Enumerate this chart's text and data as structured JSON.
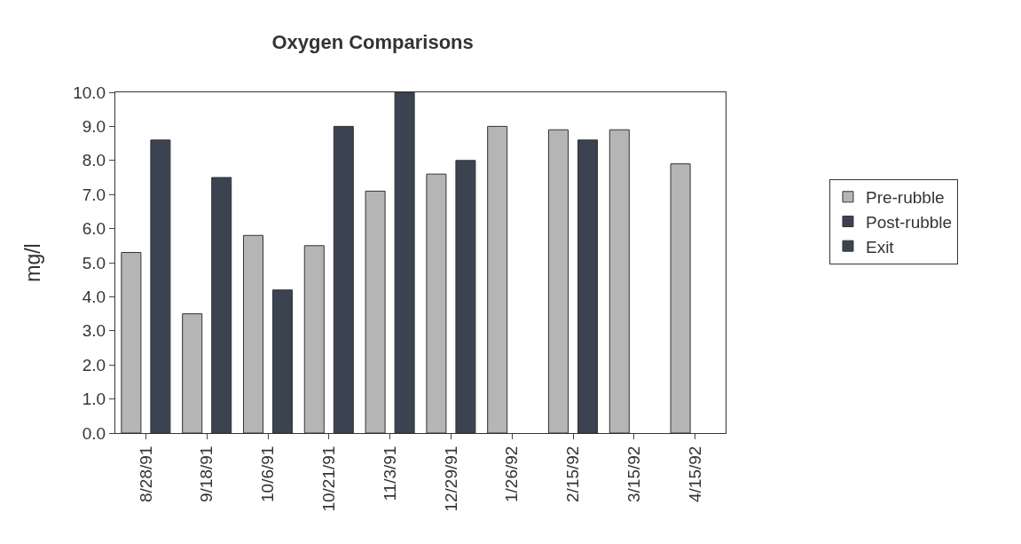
{
  "chart_data": {
    "type": "bar",
    "title": "Oxygen Comparisons",
    "ylabel": "mg/l",
    "categories": [
      "8/28/91",
      "9/18/91",
      "10/6/91",
      "10/21/91",
      "11/3/91",
      "12/29/91",
      "1/26/92",
      "2/15/92",
      "3/15/92",
      "4/15/92"
    ],
    "series": [
      {
        "name": "Pre-rubble",
        "color": "#b5b5b5",
        "values": [
          5.3,
          3.5,
          5.8,
          5.5,
          7.1,
          7.6,
          9.0,
          8.9,
          8.9,
          7.9
        ]
      },
      {
        "name": "Post-rubble",
        "color": "#3c4350",
        "values": [
          8.6,
          7.5,
          4.2,
          9.0,
          10.0,
          8.0,
          null,
          8.6,
          null,
          null
        ]
      },
      {
        "name": "Exit",
        "color": "#3c4350",
        "values": [
          null,
          null,
          null,
          null,
          null,
          null,
          null,
          null,
          null,
          null
        ]
      }
    ],
    "ylim": [
      0,
      10
    ],
    "yticks": [
      {
        "value": 0,
        "label": "0.0"
      },
      {
        "value": 1,
        "label": "1.0"
      },
      {
        "value": 2,
        "label": "2.0"
      },
      {
        "value": 3,
        "label": "3.0"
      },
      {
        "value": 4,
        "label": "4.0"
      },
      {
        "value": 5,
        "label": "5.0"
      },
      {
        "value": 6,
        "label": "6.0"
      },
      {
        "value": 7,
        "label": "7.0"
      },
      {
        "value": 8,
        "label": "8.0"
      },
      {
        "value": 9,
        "label": "9.0"
      },
      {
        "value": 10,
        "label": "10.0"
      }
    ],
    "grid": false,
    "legend": "right"
  }
}
